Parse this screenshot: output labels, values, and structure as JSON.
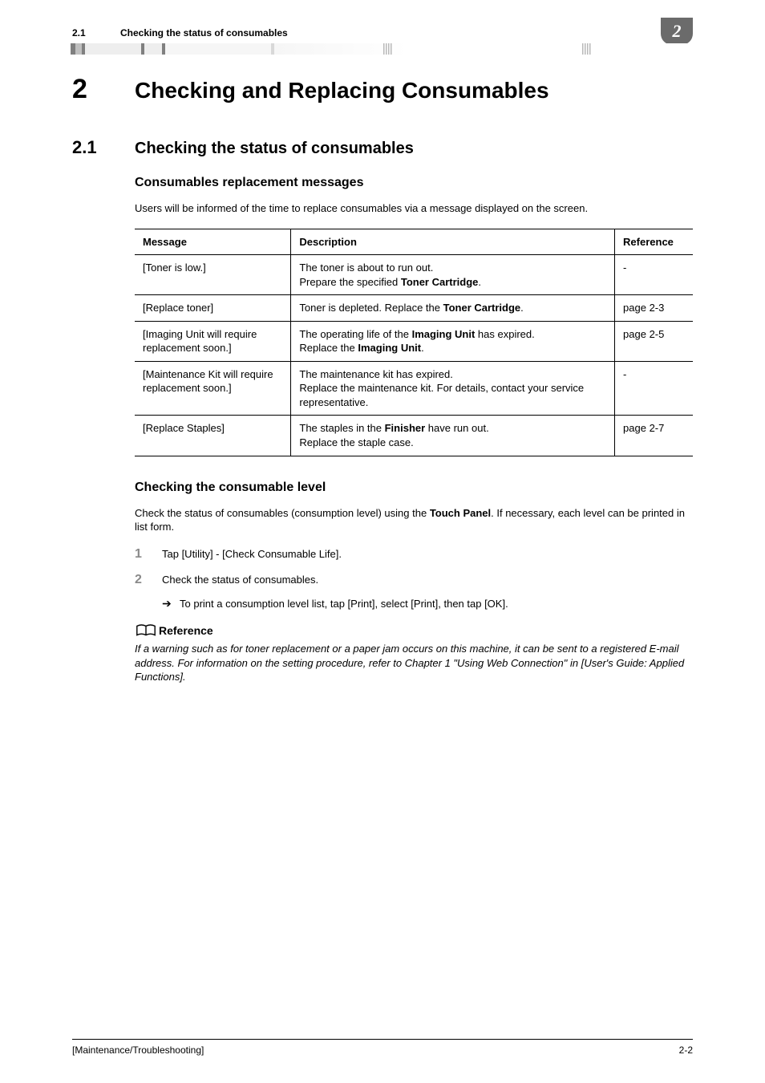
{
  "chapter_badge": "2",
  "running_header": {
    "section_number": "2.1",
    "section_title": "Checking the status of consumables"
  },
  "h1": {
    "number": "2",
    "title": "Checking and Replacing Consumables"
  },
  "h2": {
    "number": "2.1",
    "title": "Checking the status of consumables"
  },
  "section_a": {
    "heading": "Consumables replacement messages",
    "intro": "Users will be informed of the time to replace consumables via a message displayed on the screen.",
    "table": {
      "headers": {
        "c1": "Message",
        "c2": "Description",
        "c3": "Reference"
      },
      "rows": [
        {
          "msg": "[Toner is low.]",
          "desc_pre": "The toner is about to run out.\nPrepare the specified ",
          "desc_bold": "Toner Cartridge",
          "desc_post": ".",
          "ref": "-"
        },
        {
          "msg": "[Replace toner]",
          "desc_pre": "Toner is depleted. Replace the ",
          "desc_bold": "Toner Cartridge",
          "desc_post": ".",
          "ref": "page 2-3"
        },
        {
          "msg": "[Imaging Unit will require replacement soon.]",
          "desc_pre": "The operating life of the ",
          "desc_bold": "Imaging Unit",
          "desc_mid": " has expired.\nReplace the ",
          "desc_bold2": "Imaging Unit",
          "desc_post": ".",
          "ref": "page 2-5"
        },
        {
          "msg": "[Maintenance Kit will require replacement soon.]",
          "desc_plain": "The maintenance kit has expired.\nReplace the maintenance kit. For details, contact your service representative.",
          "ref": "-"
        },
        {
          "msg": "[Replace Staples]",
          "desc_pre": "The staples in the ",
          "desc_bold": "Finisher",
          "desc_post": " have run out.\nReplace the staple case.",
          "ref": "page 2-7"
        }
      ]
    }
  },
  "section_b": {
    "heading": "Checking the consumable level",
    "intro_pre": "Check the status of consumables (consumption level) using the ",
    "intro_bold": "Touch Panel",
    "intro_post": ". If necessary, each level can be printed in list form.",
    "steps": [
      {
        "n": "1",
        "text": "Tap [Utility] - [Check Consumable Life]."
      },
      {
        "n": "2",
        "text": "Check the status of consumables.",
        "sub": "To print a consumption level list, tap [Print], select [Print], then tap [OK]."
      }
    ],
    "reference_label": "Reference",
    "reference_body": "If a warning such as for toner replacement or a paper jam occurs on this machine, it can be sent to a registered E-mail address. For information on the setting procedure, refer to Chapter 1 \"Using Web Connection\" in [User's Guide: Applied Functions]."
  },
  "footer": {
    "left": "[Maintenance/Troubleshooting]",
    "right": "2-2"
  }
}
